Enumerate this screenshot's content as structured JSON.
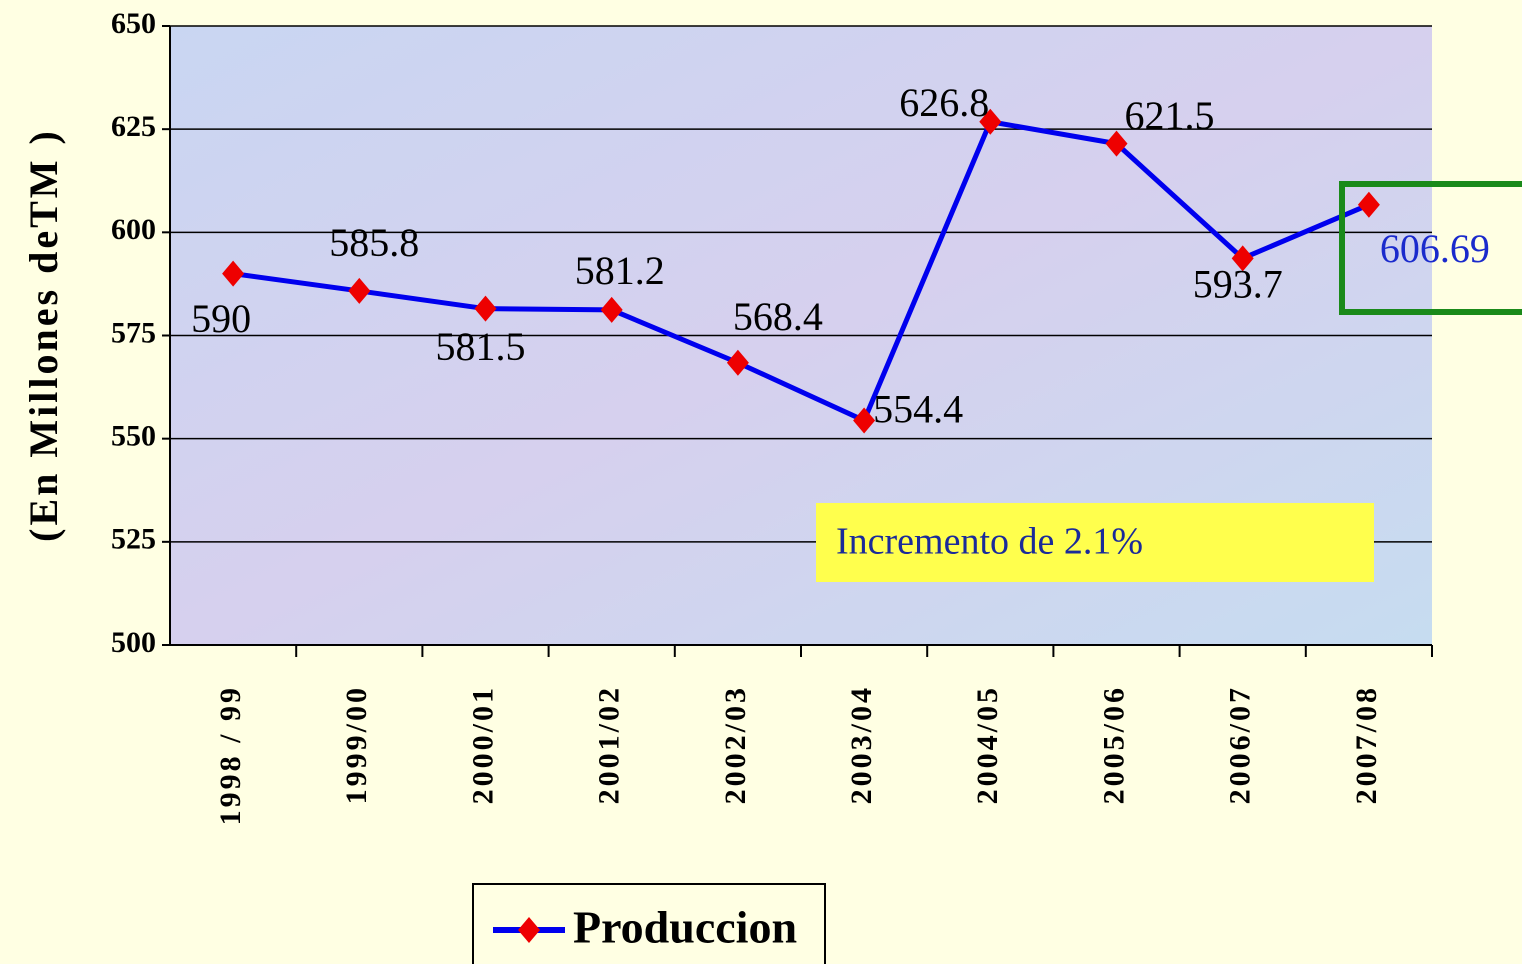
{
  "chart_data": {
    "type": "line",
    "y_label": "(En Millones deTM )",
    "categories": [
      "1998 / 99",
      "1999/00",
      "2000/01",
      "2001/02",
      "2002/03",
      "2003/04",
      "2004/05",
      "2005/06",
      "2006/07",
      "2007/08"
    ],
    "series": [
      {
        "name": "Produccion",
        "color": "#0000ee",
        "marker_color": "#ee0000",
        "values": [
          590,
          585.8,
          581.5,
          581.2,
          568.4,
          554.4,
          626.8,
          621.5,
          593.7,
          606.69
        ]
      }
    ],
    "ylim": [
      500,
      650
    ],
    "yticks": [
      500,
      525,
      550,
      575,
      600,
      625,
      650
    ],
    "grid": true,
    "annotation": "Incremento de 2.1%",
    "legend": "bottom"
  }
}
